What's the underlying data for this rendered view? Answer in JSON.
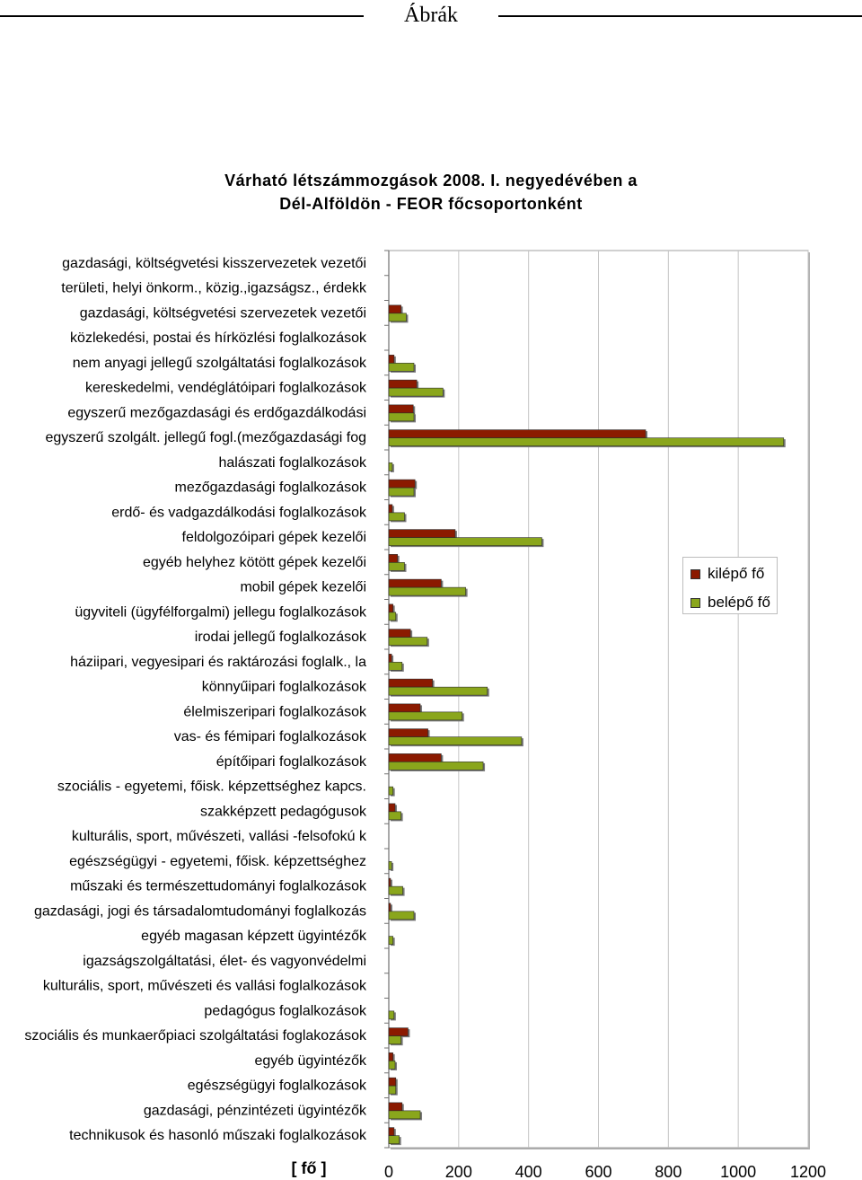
{
  "page": {
    "section_title": "Ábrák"
  },
  "chart_data": {
    "type": "bar",
    "orientation": "horizontal",
    "title_lines": [
      "Várható létszámmozgások 2008. I. negyedévében a",
      "Dél-Alföldön - FEOR főcsoportonként"
    ],
    "xlabel": "[ fő ]",
    "xlim": [
      0,
      1200
    ],
    "xticks": [
      0,
      200,
      400,
      600,
      800,
      1000,
      1200
    ],
    "grid": true,
    "legend_position": "right",
    "categories": [
      "gazdasági, költségvetési kisszervezetek vezetői",
      "területi, helyi önkorm., közig.,igazságsz., érdekk",
      "gazdasági, költségvetési szervezetek vezetői",
      "közlekedési, postai és hírközlési foglalkozások",
      "nem anyagi jellegű szolgáltatási foglalkozások",
      "kereskedelmi, vendéglátóipari foglalkozások",
      "egyszerű mezőgazdasági és erdőgazdálkodási",
      "egyszerű szolgált. jellegű fogl.(mezőgazdasági fog",
      "halászati foglalkozások",
      "mezőgazdasági foglalkozások",
      "erdő- és vadgazdálkodási foglalkozások",
      "feldolgozóipari gépek kezelői",
      "egyéb helyhez kötött gépek kezelői",
      "mobil gépek kezelői",
      "ügyviteli (ügyfélforgalmi) jellegu foglalkozások",
      "irodai jellegű foglalkozások",
      "háziipari, vegyesipari és raktározási foglalk., la",
      "könnyűipari foglalkozások",
      "élelmiszeripari foglalkozások",
      "vas- és fémipari foglalkozások",
      "építőipari foglalkozások",
      "szociális - egyetemi, főisk. képzettséghez kapcs.",
      "szakképzett pedagógusok",
      "kulturális, sport, művészeti, vallási -felsofokú k",
      "egészségügyi - egyetemi, főisk. képzettséghez",
      "műszaki és természettudományi foglalkozások",
      "gazdasági, jogi és társadalomtudományi foglalkozás",
      "egyéb magasan képzett ügyintézők",
      "igazságszolgáltatási, élet- és vagyonvédelmi",
      "kulturális, sport, művészeti és vallási foglalkozások",
      "pedagógus foglalkozások",
      "szociális és munkaerőpiaci szolgáltatási foglakozások",
      "egyéb ügyintézők",
      "egészségügyi foglalkozások",
      "gazdasági, pénzintézeti ügyintézők",
      "technikusok és hasonló műszaki foglalkozások"
    ],
    "series": [
      {
        "name": "kilépő fő",
        "color": "#8b1a00",
        "values": [
          0,
          0,
          35,
          0,
          15,
          80,
          70,
          735,
          0,
          75,
          10,
          190,
          25,
          150,
          12,
          62,
          8,
          125,
          90,
          112,
          150,
          0,
          18,
          0,
          0,
          5,
          5,
          0,
          0,
          0,
          0,
          55,
          12,
          20,
          38,
          15
        ]
      },
      {
        "name": "belépő fő",
        "color": "#8aa61c",
        "values": [
          0,
          0,
          50,
          0,
          72,
          155,
          72,
          1130,
          10,
          72,
          45,
          438,
          45,
          220,
          20,
          110,
          38,
          282,
          210,
          380,
          270,
          12,
          35,
          0,
          8,
          40,
          72,
          12,
          0,
          0,
          15,
          35,
          18,
          20,
          90,
          30
        ]
      }
    ]
  }
}
